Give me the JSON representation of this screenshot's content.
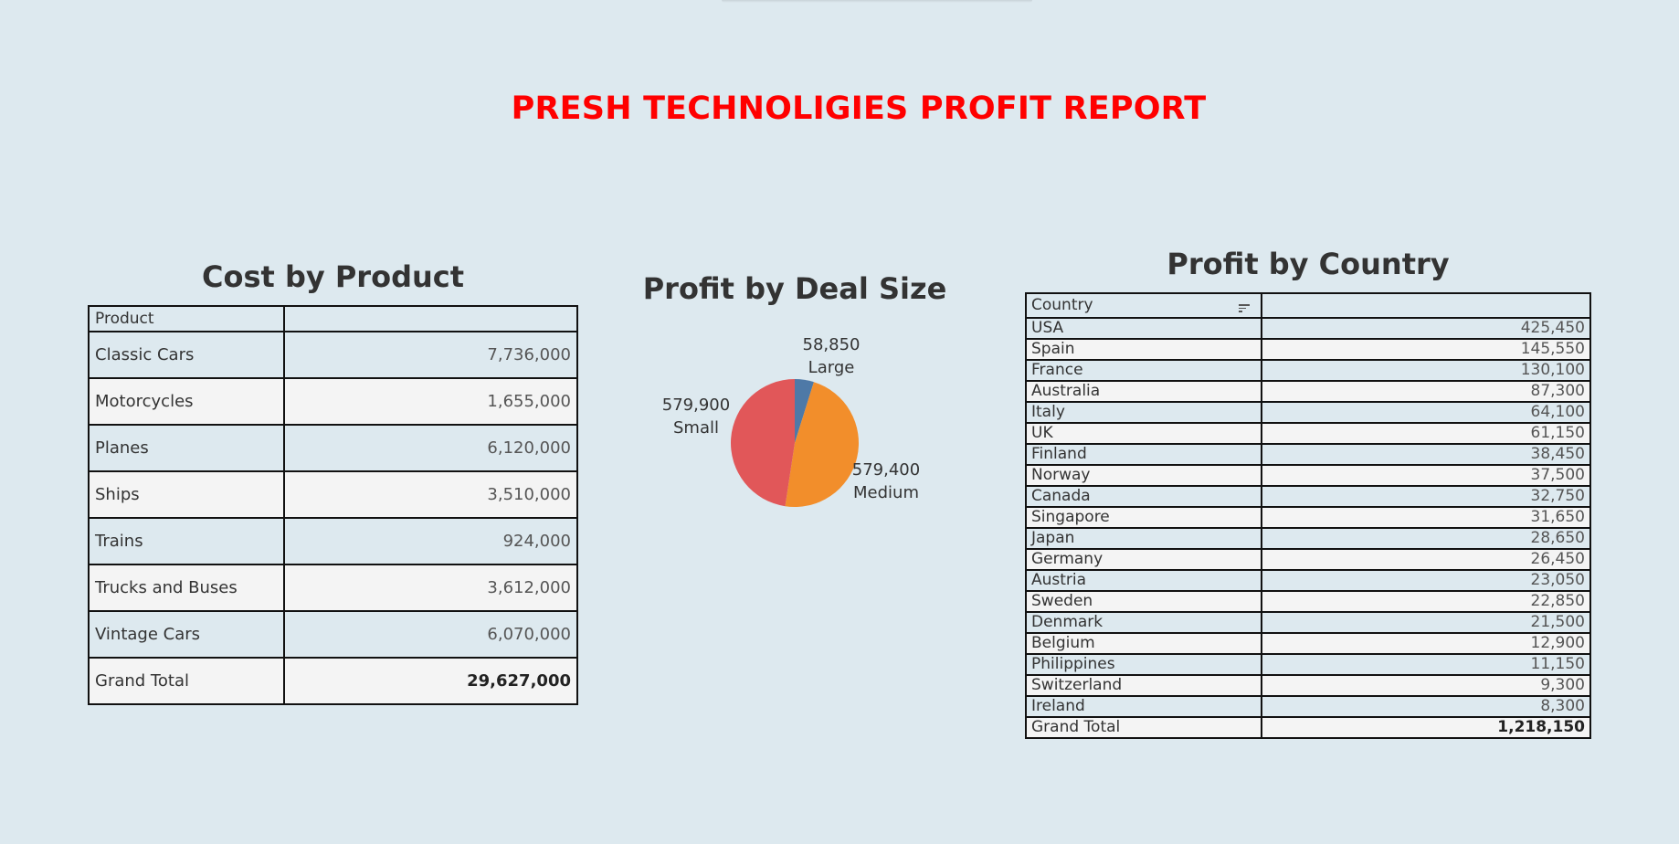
{
  "report_title": "PRESH TECHNOLIGIES PROFIT REPORT",
  "cost_by_product": {
    "title": "Cost by Product",
    "header": {
      "product": "Product",
      "value": ""
    },
    "rows": [
      {
        "product": "Classic Cars",
        "value": "7,736,000"
      },
      {
        "product": "Motorcycles",
        "value": "1,655,000"
      },
      {
        "product": "Planes",
        "value": "6,120,000"
      },
      {
        "product": "Ships",
        "value": "3,510,000"
      },
      {
        "product": "Trains",
        "value": "924,000"
      },
      {
        "product": "Trucks and Buses",
        "value": "3,612,000"
      },
      {
        "product": "Vintage Cars",
        "value": "6,070,000"
      }
    ],
    "total": {
      "label": "Grand Total",
      "value": "29,627,000"
    }
  },
  "profit_by_deal_size": {
    "title": "Profit by Deal Size",
    "labels": {
      "large_value": "58,850",
      "large_name": "Large",
      "medium_value": "579,400",
      "medium_name": "Medium",
      "small_value": "579,900",
      "small_name": "Small"
    }
  },
  "chart_data": {
    "type": "pie",
    "title": "Profit by Deal Size",
    "categories": [
      "Large",
      "Medium",
      "Small"
    ],
    "values": [
      58850,
      579400,
      579900
    ],
    "colors": [
      "#4e79a7",
      "#f28e2b",
      "#e15759"
    ]
  },
  "profit_by_country": {
    "title": "Profit by Country",
    "header": {
      "country": "Country",
      "value": ""
    },
    "rows": [
      {
        "country": "USA",
        "value": "425,450"
      },
      {
        "country": "Spain",
        "value": "145,550"
      },
      {
        "country": "France",
        "value": "130,100"
      },
      {
        "country": "Australia",
        "value": "87,300"
      },
      {
        "country": "Italy",
        "value": "64,100"
      },
      {
        "country": "UK",
        "value": "61,150"
      },
      {
        "country": "Finland",
        "value": "38,450"
      },
      {
        "country": "Norway",
        "value": "37,500"
      },
      {
        "country": "Canada",
        "value": "32,750"
      },
      {
        "country": "Singapore",
        "value": "31,650"
      },
      {
        "country": "Japan",
        "value": "28,650"
      },
      {
        "country": "Germany",
        "value": "26,450"
      },
      {
        "country": "Austria",
        "value": "23,050"
      },
      {
        "country": "Sweden",
        "value": "22,850"
      },
      {
        "country": "Denmark",
        "value": "21,500"
      },
      {
        "country": "Belgium",
        "value": "12,900"
      },
      {
        "country": "Philippines",
        "value": "11,150"
      },
      {
        "country": "Switzerland",
        "value": "9,300"
      },
      {
        "country": "Ireland",
        "value": "8,300"
      }
    ],
    "total": {
      "label": "Grand Total",
      "value": "1,218,150"
    },
    "sort_icon": "sort-descending-icon"
  },
  "colors": {
    "background": "#dde9ef",
    "title_red": "#ff0000",
    "alt_row": "#f4f4f4"
  }
}
